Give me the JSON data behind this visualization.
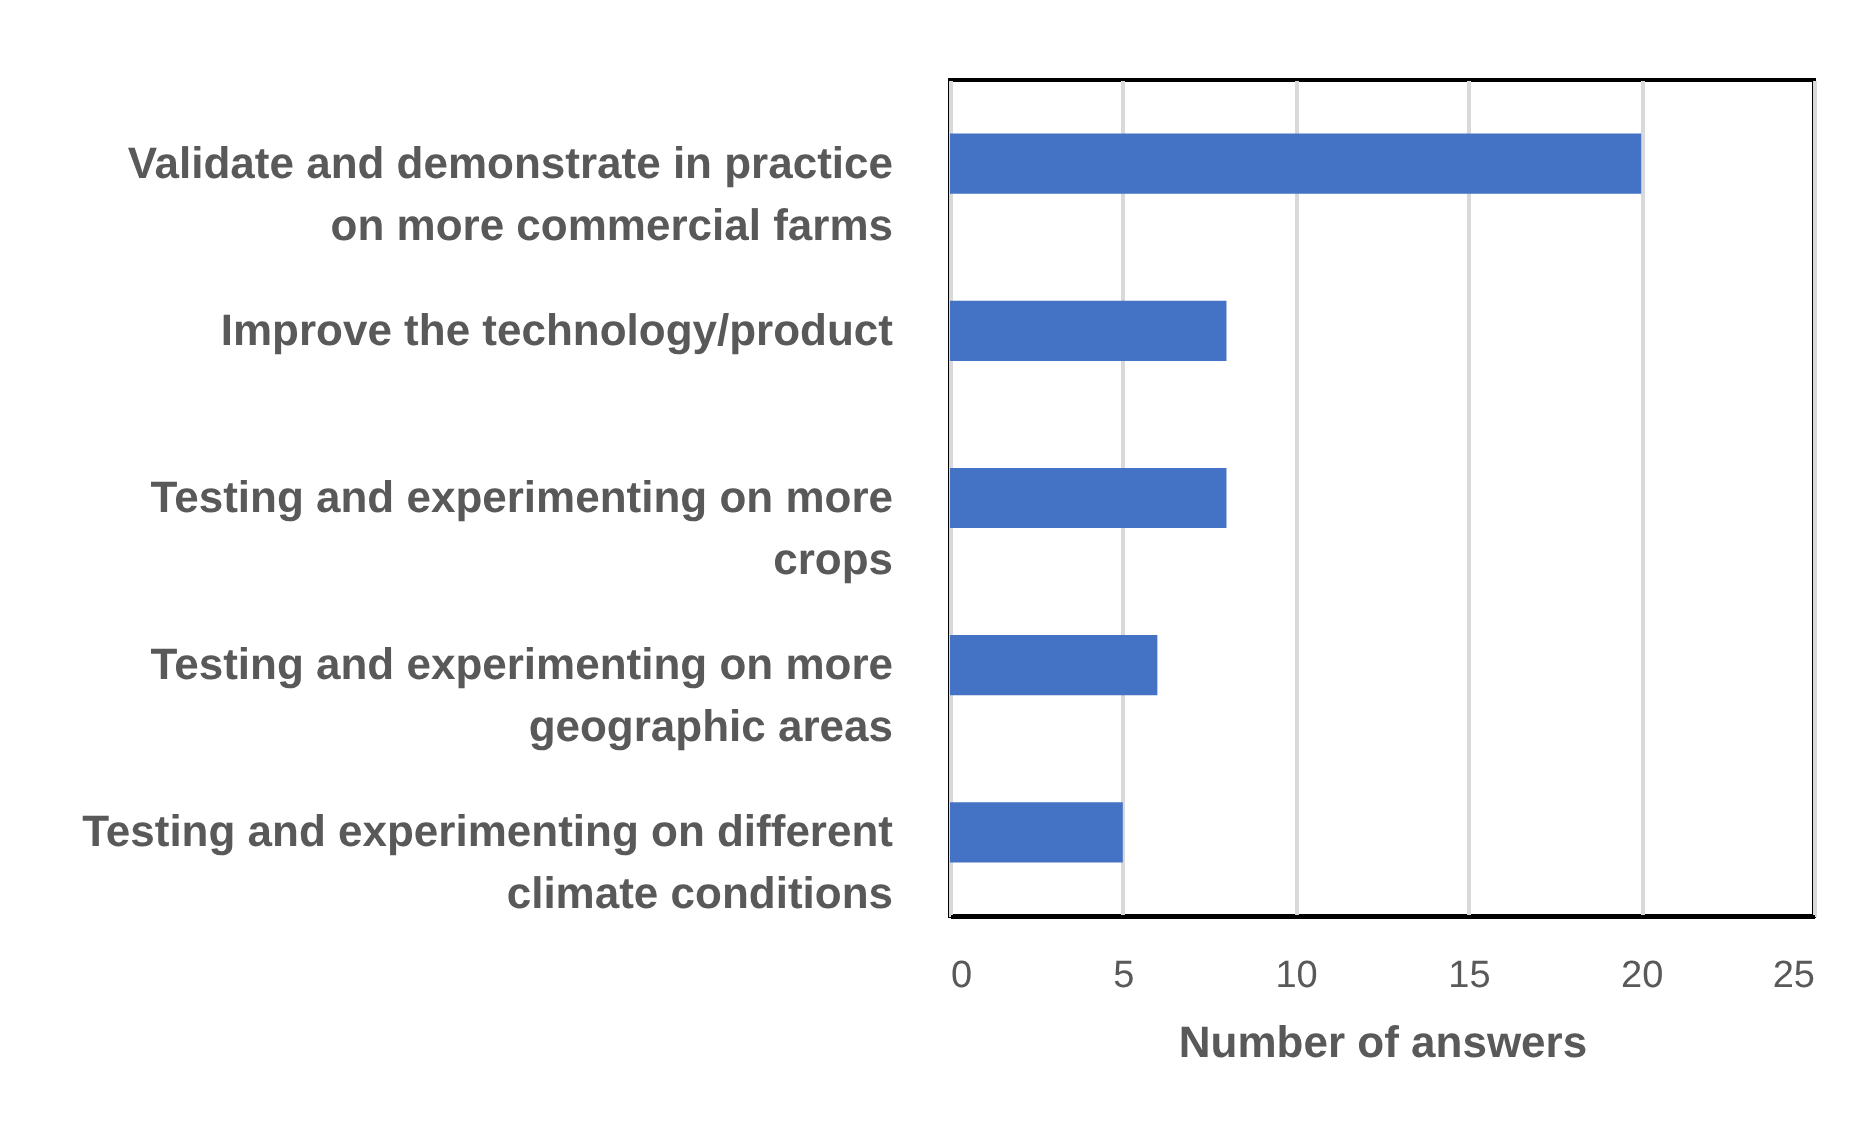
{
  "chart_data": {
    "type": "bar",
    "orientation": "horizontal",
    "categories": [
      "Validate and demonstrate in practice on more commercial farms",
      "Improve the technology/product",
      "Testing and experimenting on more crops",
      "Testing and experimenting on more geographic areas",
      "Testing and experimenting on different climate conditions"
    ],
    "values": [
      20,
      8,
      8,
      6,
      5
    ],
    "color": "#4472c4",
    "xlabel": "Number of answers",
    "xlim": [
      0,
      25
    ],
    "xticks": [
      0,
      5,
      10,
      15,
      20,
      25
    ],
    "grid": "x"
  }
}
